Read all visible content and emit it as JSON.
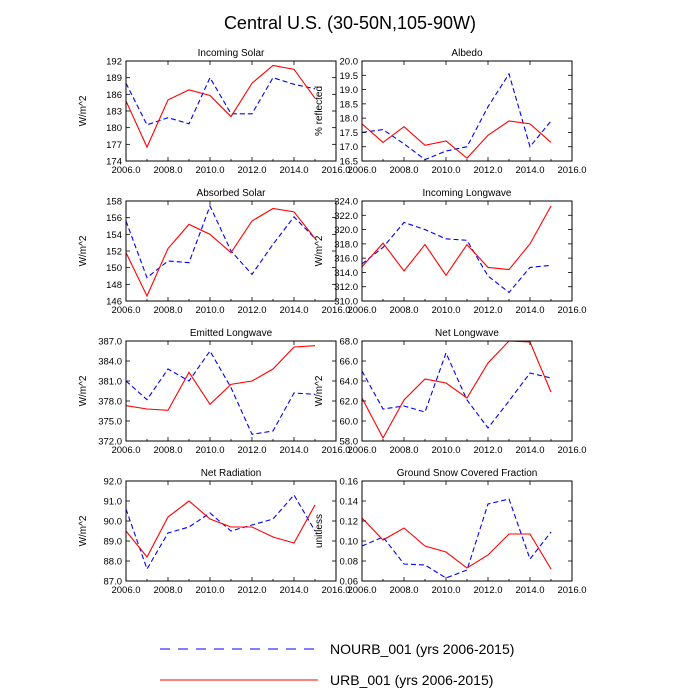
{
  "title": "Central U.S. (30-50N,105-90W)",
  "legend": [
    {
      "label": "NOURB_001 (yrs 2006-2015)",
      "color": "#0000ff",
      "dashed": true
    },
    {
      "label": "URB_001 (yrs 2006-2015)",
      "color": "#ff0000",
      "dashed": false
    }
  ],
  "chart_data": [
    {
      "type": "line",
      "title": "Incoming Solar",
      "xlabel": "",
      "ylabel": "W/m^2",
      "x": [
        2006,
        2007,
        2008,
        2009,
        2010,
        2011,
        2012,
        2013,
        2014,
        2015
      ],
      "xlim": [
        2006,
        2016
      ],
      "xticks": [
        "2006.0",
        "2008.0",
        "2010.0",
        "2012.0",
        "2014.0",
        "2016.0"
      ],
      "ylim": [
        174,
        192
      ],
      "yticks": [
        "174",
        "177",
        "180",
        "183",
        "186",
        "189",
        "192"
      ],
      "grid": false,
      "series": [
        {
          "name": "NOURB_001 (yrs 2006-2015)",
          "color": "#0000ff",
          "dashed": true,
          "values": [
            188.0,
            180.5,
            181.8,
            180.7,
            189.0,
            182.5,
            182.5,
            189.0,
            187.8,
            187.0
          ]
        },
        {
          "name": "URB_001 (yrs 2006-2015)",
          "color": "#ff0000",
          "dashed": false,
          "values": [
            184.8,
            176.5,
            185.0,
            186.8,
            185.8,
            182.0,
            188.0,
            191.2,
            190.5,
            185.3
          ]
        }
      ]
    },
    {
      "type": "line",
      "title": "Albedo",
      "xlabel": "",
      "ylabel": "% reflected",
      "x": [
        2006,
        2007,
        2008,
        2009,
        2010,
        2011,
        2012,
        2013,
        2014,
        2015
      ],
      "xlim": [
        2006,
        2016
      ],
      "xticks": [
        "2006.0",
        "2008.0",
        "2010.0",
        "2012.0",
        "2014.0",
        "2016.0"
      ],
      "ylim": [
        16.5,
        20.0
      ],
      "yticks": [
        "16.5",
        "17.0",
        "17.5",
        "18.0",
        "18.5",
        "19.0",
        "19.5",
        "20.0"
      ],
      "grid": false,
      "series": [
        {
          "name": "NOURB_001 (yrs 2006-2015)",
          "color": "#0000ff",
          "dashed": true,
          "values": [
            17.5,
            17.6,
            17.1,
            16.55,
            16.85,
            17.0,
            18.4,
            19.55,
            17.0,
            17.9
          ]
        },
        {
          "name": "URB_001 (yrs 2006-2015)",
          "color": "#ff0000",
          "dashed": false,
          "values": [
            17.8,
            17.15,
            17.7,
            17.05,
            17.2,
            16.6,
            17.4,
            17.9,
            17.8,
            17.15
          ]
        }
      ]
    },
    {
      "type": "line",
      "title": "Absorbed Solar",
      "xlabel": "",
      "ylabel": "W/m^2",
      "x": [
        2006,
        2007,
        2008,
        2009,
        2010,
        2011,
        2012,
        2013,
        2014,
        2015
      ],
      "xlim": [
        2006,
        2016
      ],
      "xticks": [
        "2006.0",
        "2008.0",
        "2010.0",
        "2012.0",
        "2014.0",
        "2016.0"
      ],
      "ylim": [
        146,
        158
      ],
      "yticks": [
        "146",
        "148",
        "150",
        "152",
        "154",
        "156",
        "158"
      ],
      "grid": false,
      "series": [
        {
          "name": "NOURB_001 (yrs 2006-2015)",
          "color": "#0000ff",
          "dashed": true,
          "values": [
            155.6,
            148.8,
            150.8,
            150.6,
            157.4,
            152.0,
            149.2,
            152.8,
            156.1,
            153.5
          ]
        },
        {
          "name": "URB_001 (yrs 2006-2015)",
          "color": "#ff0000",
          "dashed": false,
          "values": [
            151.8,
            146.6,
            152.3,
            155.2,
            154.0,
            151.8,
            155.6,
            157.1,
            156.7,
            153.5
          ]
        }
      ]
    },
    {
      "type": "line",
      "title": "Incoming Longwave",
      "xlabel": "",
      "ylabel": "W/m^2",
      "x": [
        2006,
        2007,
        2008,
        2009,
        2010,
        2011,
        2012,
        2013,
        2014,
        2015
      ],
      "xlim": [
        2006,
        2016
      ],
      "xticks": [
        "2006.0",
        "2008.0",
        "2010.0",
        "2012.0",
        "2014.0",
        "2016.0"
      ],
      "ylim": [
        310.0,
        324.0
      ],
      "yticks": [
        "310.0",
        "312.0",
        "314.0",
        "316.0",
        "318.0",
        "320.0",
        "322.0",
        "324.0"
      ],
      "grid": false,
      "series": [
        {
          "name": "NOURB_001 (yrs 2006-2015)",
          "color": "#0000ff",
          "dashed": true,
          "values": [
            315.2,
            317.5,
            321.0,
            320.0,
            318.7,
            318.5,
            313.5,
            311.2,
            314.7,
            315.0
          ]
        },
        {
          "name": "URB_001 (yrs 2006-2015)",
          "color": "#ff0000",
          "dashed": false,
          "values": [
            314.8,
            318.1,
            314.2,
            317.9,
            313.6,
            317.9,
            314.7,
            314.4,
            318.0,
            323.3
          ]
        }
      ]
    },
    {
      "type": "line",
      "title": "Emitted Longwave",
      "xlabel": "",
      "ylabel": "W/m^2",
      "x": [
        2006,
        2007,
        2008,
        2009,
        2010,
        2011,
        2012,
        2013,
        2014,
        2015
      ],
      "xlim": [
        2006,
        2016
      ],
      "xticks": [
        "2006.0",
        "2008.0",
        "2010.0",
        "2012.0",
        "2014.0",
        "2016.0"
      ],
      "ylim": [
        372.0,
        387.0
      ],
      "yticks": [
        "372.0",
        "375.0",
        "378.0",
        "381.0",
        "384.0",
        "387.0"
      ],
      "grid": false,
      "series": [
        {
          "name": "NOURB_001 (yrs 2006-2015)",
          "color": "#0000ff",
          "dashed": true,
          "values": [
            381.0,
            378.2,
            382.8,
            381.0,
            385.5,
            380.0,
            373.0,
            373.5,
            379.2,
            379.0
          ]
        },
        {
          "name": "URB_001 (yrs 2006-2015)",
          "color": "#ff0000",
          "dashed": false,
          "values": [
            377.3,
            376.8,
            376.6,
            382.3,
            377.5,
            380.5,
            381.0,
            382.8,
            386.1,
            386.3
          ]
        }
      ]
    },
    {
      "type": "line",
      "title": "Net Longwave",
      "xlabel": "",
      "ylabel": "W/m^2",
      "x": [
        2006,
        2007,
        2008,
        2009,
        2010,
        2011,
        2012,
        2013,
        2014,
        2015
      ],
      "xlim": [
        2006,
        2016
      ],
      "xticks": [
        "2006.0",
        "2008.0",
        "2010.0",
        "2012.0",
        "2014.0",
        "2016.0"
      ],
      "ylim": [
        58.0,
        68.0
      ],
      "yticks": [
        "58.0",
        "60.0",
        "62.0",
        "64.0",
        "66.0",
        "68.0"
      ],
      "grid": false,
      "series": [
        {
          "name": "NOURB_001 (yrs 2006-2015)",
          "color": "#0000ff",
          "dashed": true,
          "values": [
            65.0,
            61.2,
            61.5,
            60.9,
            66.8,
            62.1,
            59.3,
            62.0,
            64.8,
            64.3
          ]
        },
        {
          "name": "URB_001 (yrs 2006-2015)",
          "color": "#ff0000",
          "dashed": false,
          "values": [
            62.3,
            58.3,
            62.1,
            64.2,
            63.8,
            62.3,
            65.8,
            68.0,
            67.9,
            62.9
          ]
        }
      ]
    },
    {
      "type": "line",
      "title": "Net Radiation",
      "xlabel": "",
      "ylabel": "W/m^2",
      "x": [
        2006,
        2007,
        2008,
        2009,
        2010,
        2011,
        2012,
        2013,
        2014,
        2015
      ],
      "xlim": [
        2006,
        2016
      ],
      "xticks": [
        "2006.0",
        "2008.0",
        "2010.0",
        "2012.0",
        "2014.0",
        "2016.0"
      ],
      "ylim": [
        87.0,
        92.0
      ],
      "yticks": [
        "87.0",
        "88.0",
        "89.0",
        "90.0",
        "91.0",
        "92.0"
      ],
      "grid": false,
      "series": [
        {
          "name": "NOURB_001 (yrs 2006-2015)",
          "color": "#0000ff",
          "dashed": true,
          "values": [
            90.6,
            87.6,
            89.4,
            89.7,
            90.4,
            89.5,
            89.8,
            90.1,
            91.3,
            89.5
          ]
        },
        {
          "name": "URB_001 (yrs 2006-2015)",
          "color": "#ff0000",
          "dashed": false,
          "values": [
            89.5,
            88.2,
            90.2,
            91.0,
            90.1,
            89.7,
            89.7,
            89.2,
            88.9,
            90.8
          ]
        }
      ]
    },
    {
      "type": "line",
      "title": "Ground Snow Covered Fraction",
      "xlabel": "",
      "ylabel": "unitless",
      "x": [
        2006,
        2007,
        2008,
        2009,
        2010,
        2011,
        2012,
        2013,
        2014,
        2015
      ],
      "xlim": [
        2006,
        2016
      ],
      "xticks": [
        "2006.0",
        "2008.0",
        "2010.0",
        "2012.0",
        "2014.0",
        "2016.0"
      ],
      "ylim": [
        0.06,
        0.16
      ],
      "yticks": [
        "0.06",
        "0.08",
        "0.10",
        "0.12",
        "0.14",
        "0.16"
      ],
      "grid": false,
      "series": [
        {
          "name": "NOURB_001 (yrs 2006-2015)",
          "color": "#0000ff",
          "dashed": true,
          "values": [
            0.095,
            0.104,
            0.077,
            0.076,
            0.063,
            0.071,
            0.137,
            0.142,
            0.082,
            0.109
          ]
        },
        {
          "name": "URB_001 (yrs 2006-2015)",
          "color": "#ff0000",
          "dashed": false,
          "values": [
            0.123,
            0.101,
            0.113,
            0.095,
            0.089,
            0.073,
            0.086,
            0.107,
            0.107,
            0.072
          ]
        }
      ]
    }
  ]
}
